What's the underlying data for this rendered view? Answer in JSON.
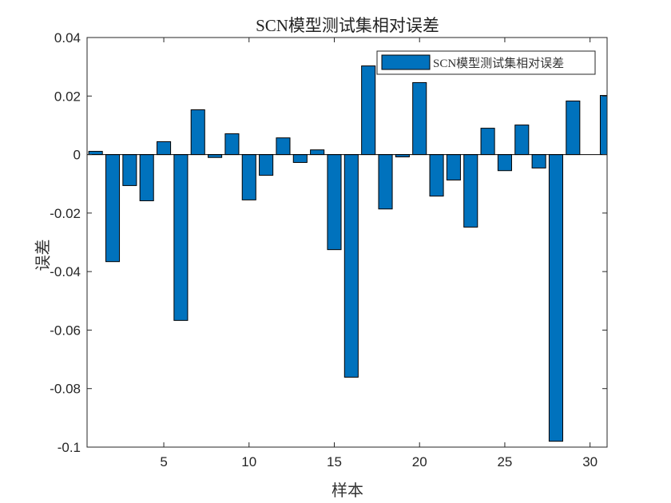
{
  "chart_data": {
    "type": "bar",
    "title": "SCN模型测试集相对误差",
    "xlabel": "样本",
    "ylabel": "误差",
    "xlim": [
      0.5,
      31
    ],
    "ylim": [
      -0.1,
      0.04
    ],
    "xticks": [
      5,
      10,
      15,
      20,
      25,
      30
    ],
    "yticks": [
      -0.1,
      -0.08,
      -0.06,
      -0.04,
      -0.02,
      0,
      0.02,
      0.04
    ],
    "ytick_labels": [
      "-0.1",
      "-0.08",
      "-0.06",
      "-0.04",
      "-0.02",
      "0",
      "0.02",
      "0.04"
    ],
    "grid": false,
    "legend_position": "northeast",
    "categories": [
      1,
      2,
      3,
      4,
      5,
      6,
      7,
      8,
      9,
      10,
      11,
      12,
      13,
      14,
      15,
      16,
      17,
      18,
      19,
      20,
      21,
      22,
      23,
      24,
      25,
      26,
      27,
      28,
      29,
      30,
      31
    ],
    "series": [
      {
        "name": "SCN模型测试集相对误差",
        "color": "#0072BD",
        "values": [
          0.0011,
          -0.0366,
          -0.0106,
          -0.0158,
          0.0044,
          -0.0567,
          0.0153,
          -0.001,
          0.0071,
          -0.0155,
          -0.0071,
          0.0057,
          -0.0027,
          0.0016,
          -0.0325,
          -0.0761,
          0.0303,
          -0.0186,
          -0.0008,
          0.0246,
          -0.0142,
          -0.0087,
          -0.0248,
          0.009,
          -0.0055,
          0.0101,
          -0.0046,
          -0.098,
          0.0183,
          0.0,
          0.0202
        ]
      }
    ]
  }
}
